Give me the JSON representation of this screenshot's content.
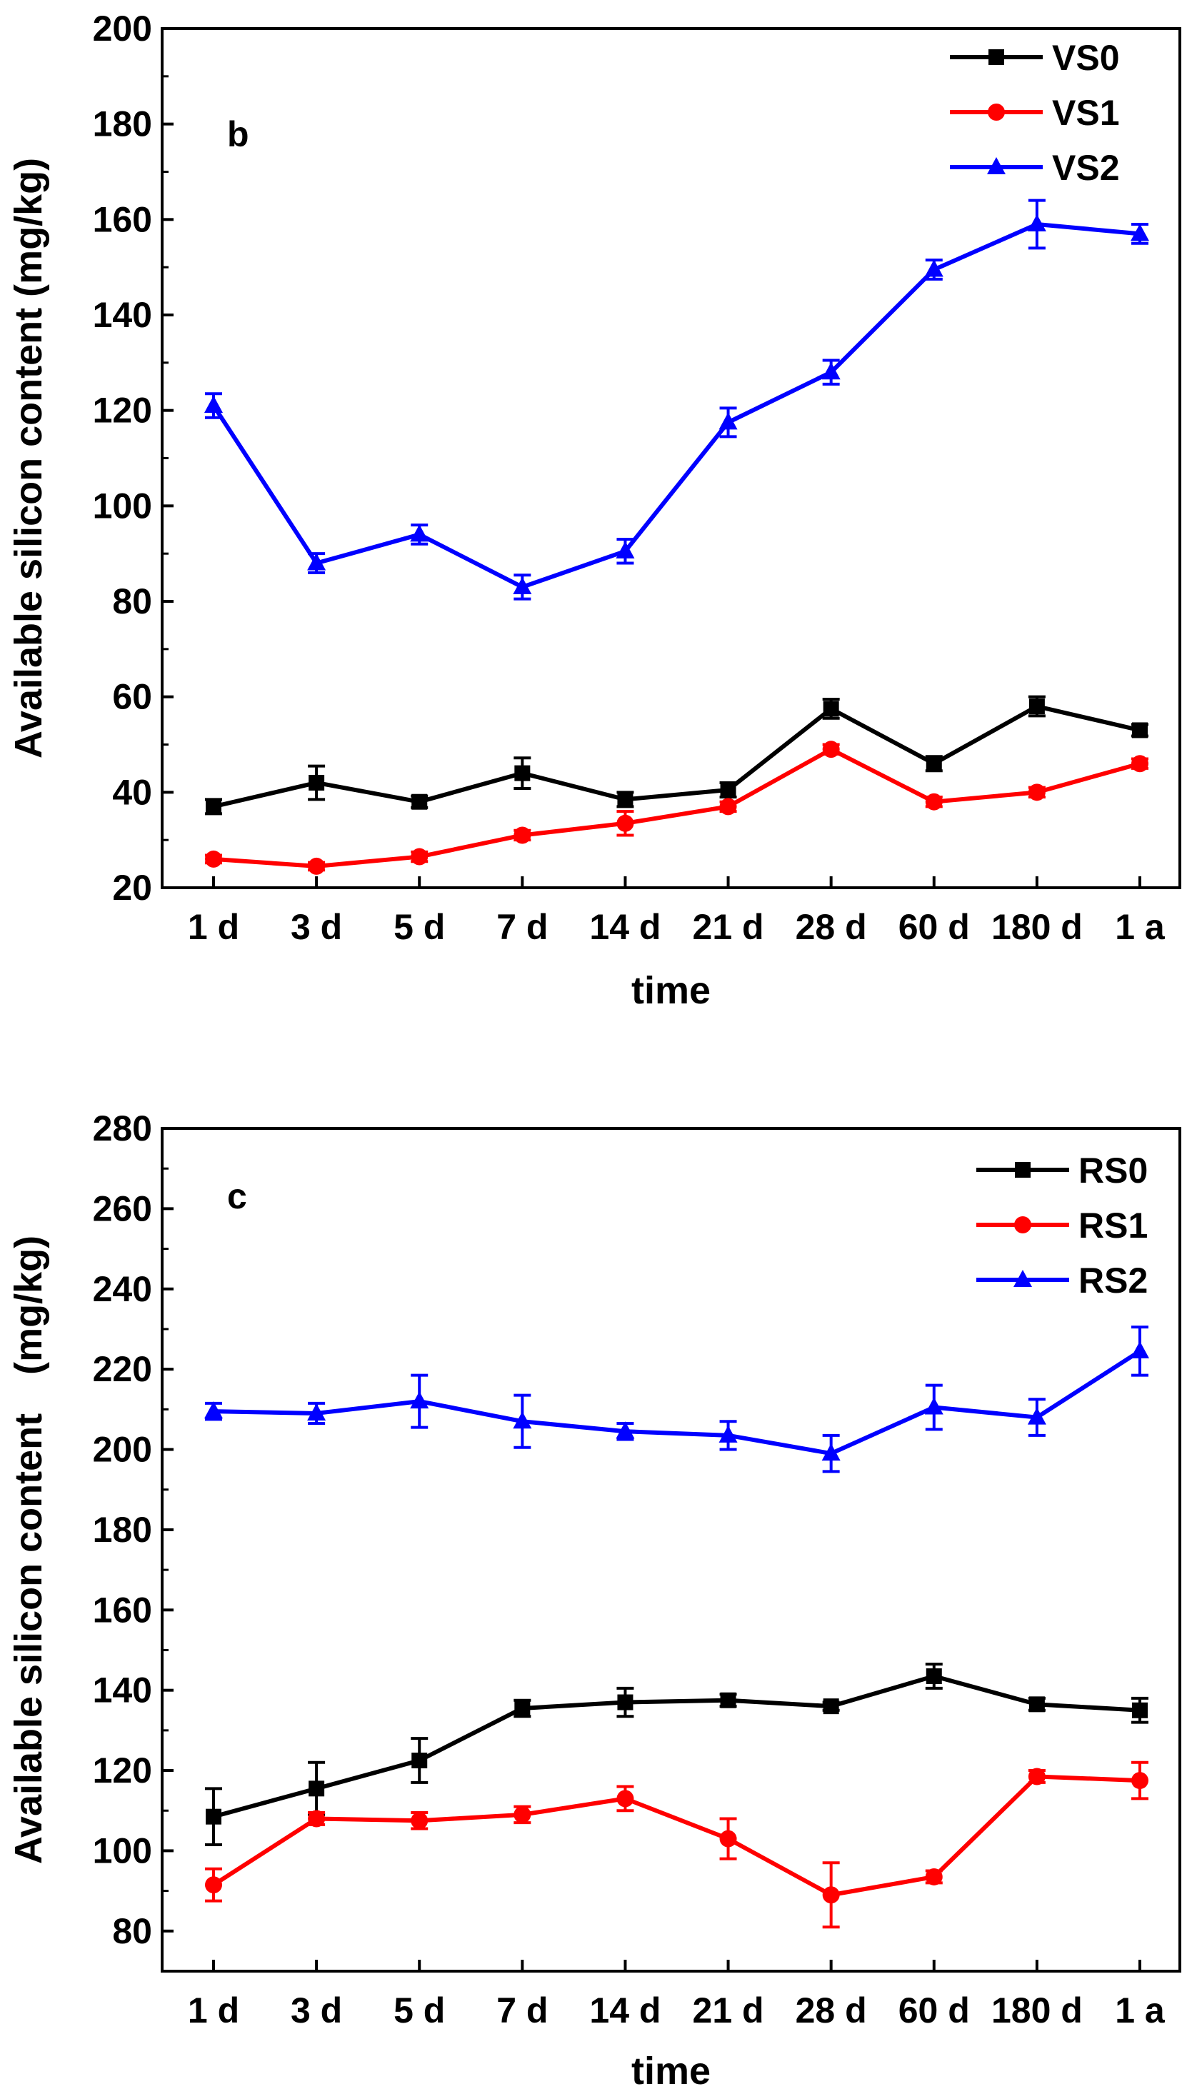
{
  "chart_data": [
    {
      "type": "line",
      "panel_label": "b",
      "xlabel": "time",
      "ylabel": "Available silicon content (mg/kg)",
      "categories": [
        "1 d",
        "3 d",
        "5 d",
        "7 d",
        "14 d",
        "21 d",
        "28 d",
        "60 d",
        "180 d",
        "1 a"
      ],
      "ylim": [
        20,
        200
      ],
      "yticks": [
        20,
        40,
        60,
        80,
        100,
        120,
        140,
        160,
        180,
        200
      ],
      "legend_position": "top-right",
      "series": [
        {
          "name": "VS0",
          "color": "#000000",
          "marker": "square",
          "values": [
            37,
            42,
            38,
            44,
            38.5,
            40.5,
            57.5,
            46,
            58,
            53
          ],
          "errors": [
            1.5,
            3.5,
            1.2,
            3.2,
            1.5,
            1.5,
            2,
            1.5,
            2,
            1.2
          ]
        },
        {
          "name": "VS1",
          "color": "#ff0000",
          "marker": "circle",
          "values": [
            26,
            24.5,
            26.5,
            31,
            33.5,
            37,
            49,
            38,
            40,
            46
          ],
          "errors": [
            0.8,
            0.8,
            1,
            1,
            2.5,
            1,
            1,
            1,
            1,
            1
          ]
        },
        {
          "name": "VS2",
          "color": "#0000ff",
          "marker": "triangle",
          "values": [
            121,
            88,
            94,
            83,
            90.5,
            117.5,
            128,
            149.5,
            159,
            157
          ],
          "errors": [
            2.5,
            2,
            2,
            2.5,
            2.5,
            3,
            2.5,
            2,
            5,
            2
          ]
        }
      ]
    },
    {
      "type": "line",
      "panel_label": "c",
      "xlabel": "time",
      "ylabel": "Available silicon content　(mg/kg)",
      "categories": [
        "1 d",
        "3 d",
        "5 d",
        "7 d",
        "14 d",
        "21 d",
        "28 d",
        "60 d",
        "180 d",
        "1 a"
      ],
      "ylim": [
        70,
        280
      ],
      "yticks": [
        80,
        100,
        120,
        140,
        160,
        180,
        200,
        220,
        240,
        260,
        280
      ],
      "legend_position": "top-right",
      "series": [
        {
          "name": "RS0",
          "color": "#000000",
          "marker": "square",
          "values": [
            108.5,
            115.5,
            122.5,
            135.5,
            137,
            137.5,
            136,
            143.5,
            136.5,
            135
          ],
          "errors": [
            7,
            6.5,
            5.5,
            2,
            3.5,
            1.5,
            1,
            3,
            1.5,
            3
          ]
        },
        {
          "name": "RS1",
          "color": "#ff0000",
          "marker": "circle",
          "values": [
            91.5,
            108,
            107.5,
            109,
            113,
            103,
            89,
            93.5,
            118.5,
            117.5
          ],
          "errors": [
            4,
            1.5,
            2,
            2,
            3,
            5,
            8,
            1.5,
            1.5,
            4.5
          ]
        },
        {
          "name": "RS2",
          "color": "#0000ff",
          "marker": "triangle",
          "values": [
            209.5,
            209,
            212,
            207,
            204.5,
            203.5,
            199,
            210.5,
            208,
            224.5
          ],
          "errors": [
            2,
            2.5,
            6.5,
            6.5,
            2,
            3.5,
            4.5,
            5.5,
            4.5,
            6
          ]
        }
      ]
    }
  ]
}
